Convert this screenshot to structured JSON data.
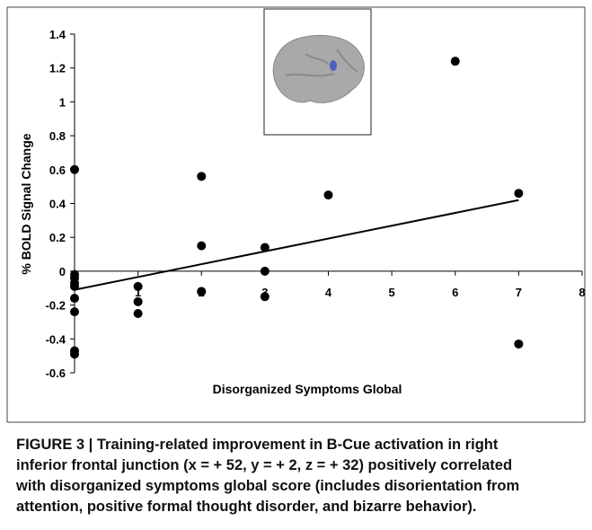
{
  "chart_data": {
    "type": "scatter",
    "y_label": "% BOLD Signal Change",
    "x_label": "Disorganized Symptoms Global",
    "x": [
      0,
      0,
      0,
      0,
      0,
      0,
      0,
      0,
      0,
      1,
      1,
      1,
      2,
      2,
      2,
      2,
      3,
      3,
      3,
      4,
      6,
      7,
      7
    ],
    "values": [
      0.6,
      -0.02,
      -0.04,
      -0.07,
      -0.09,
      -0.16,
      -0.24,
      -0.47,
      -0.49,
      -0.09,
      -0.18,
      -0.25,
      0.56,
      0.15,
      -0.12,
      -0.12,
      0.14,
      0.0,
      -0.15,
      0.45,
      1.24,
      0.46,
      -0.43
    ],
    "color": "#000000",
    "fit_line": {
      "x": [
        0,
        7
      ],
      "values": [
        -0.11,
        0.42
      ],
      "color": "#000000"
    },
    "xlim": [
      0,
      8
    ],
    "xticks": [
      1,
      2,
      3,
      4,
      5,
      6,
      7,
      8
    ],
    "ylim": [
      -0.6,
      1.4
    ],
    "yticks": [
      1.4,
      1.2,
      1,
      0.8,
      0.6,
      0.4,
      0.2,
      0,
      -0.2,
      -0.4,
      -0.6
    ],
    "grid": false,
    "caption": [
      "FIGURE 3 | Training-related improvement in B-Cue activation in right",
      "inferior frontal junction (x = + 52, y = + 2, z = + 32) positively correlated",
      "with disorganized symptoms global score (includes disorientation from",
      "attention, positive formal thought disorder, and bizarre behavior)."
    ]
  }
}
